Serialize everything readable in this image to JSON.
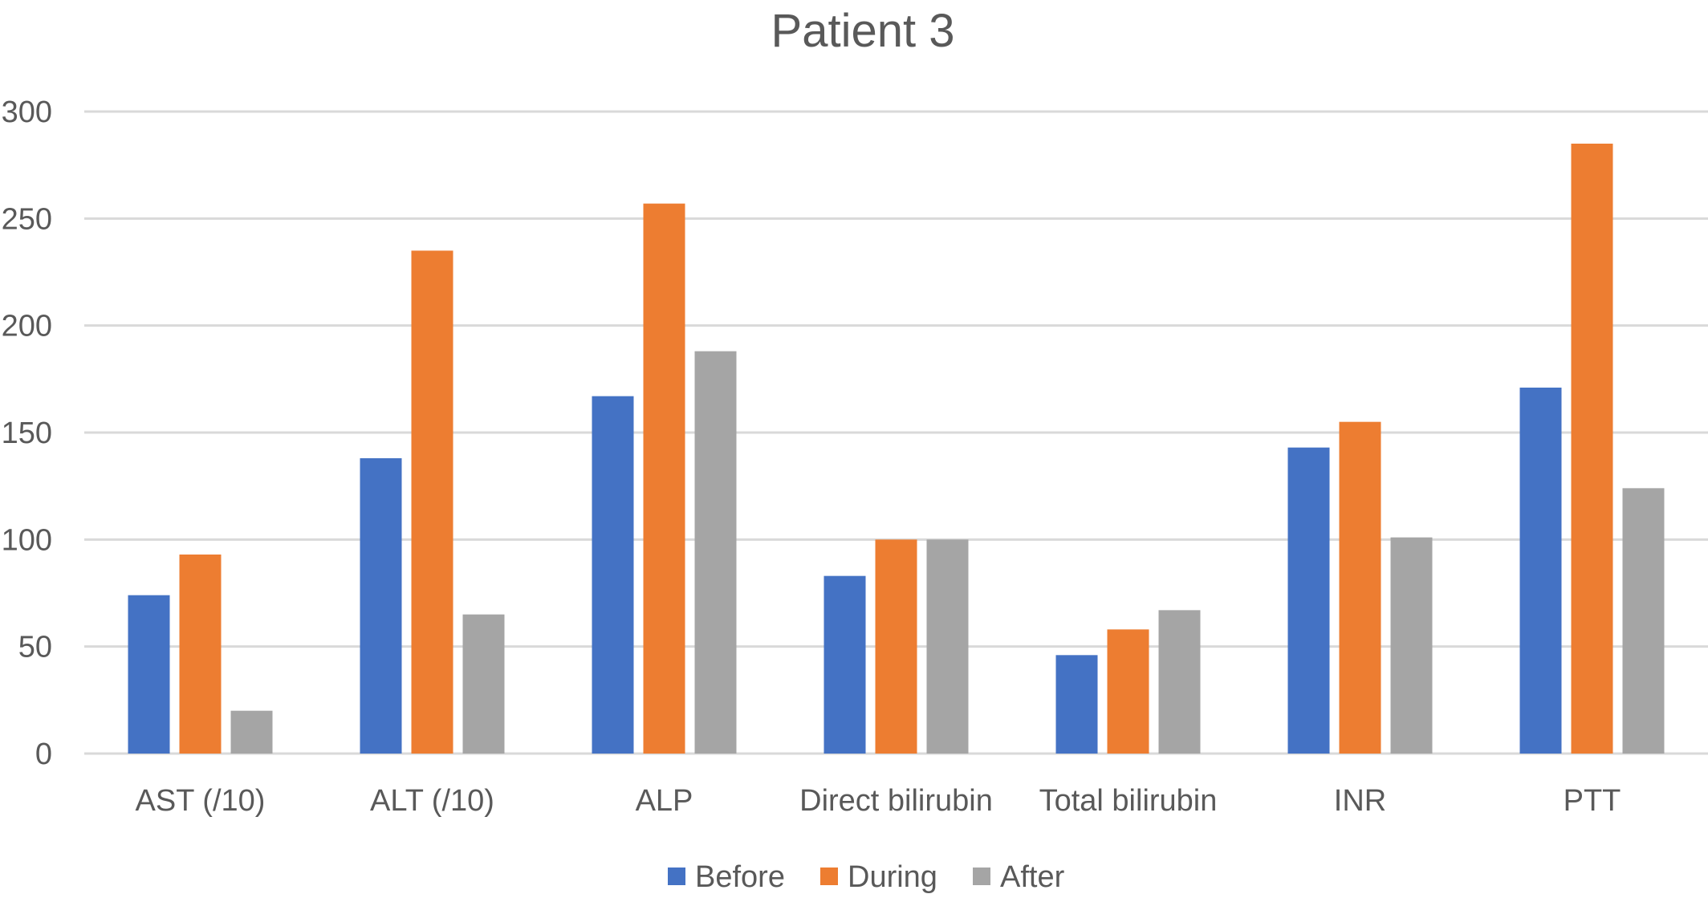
{
  "chart_data": {
    "type": "bar",
    "title": "Patient 3",
    "xlabel": "",
    "ylabel": "",
    "categories": [
      "AST (/10)",
      "ALT (/10)",
      "ALP",
      "Direct bilirubin",
      "Total bilirubin",
      "INR",
      "PTT"
    ],
    "series": [
      {
        "name": "Before",
        "color": "#4472C4",
        "values": [
          74,
          138,
          167,
          83,
          46,
          143,
          171
        ]
      },
      {
        "name": "During",
        "color": "#ED7D31",
        "values": [
          93,
          235,
          257,
          100,
          58,
          155,
          285
        ]
      },
      {
        "name": "After",
        "color": "#A5A5A5",
        "values": [
          20,
          65,
          188,
          100,
          67,
          101,
          124
        ]
      }
    ],
    "ylim": [
      0,
      300
    ],
    "yticks": [
      0,
      50,
      100,
      150,
      200,
      250,
      300
    ],
    "grid": true,
    "legend": "bottom"
  }
}
